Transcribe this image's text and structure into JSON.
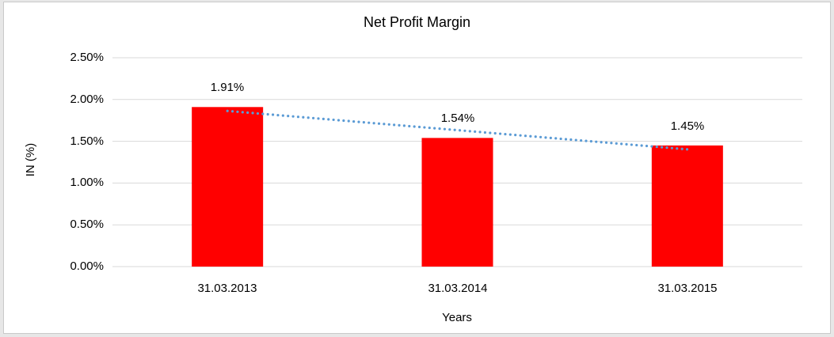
{
  "window": {
    "frame_background": "#e7e7e7",
    "chart_background": "#ffffff",
    "chart_border_color": "#c9c9c9",
    "text_color": "#000000"
  },
  "chart_data": {
    "type": "bar",
    "title": "Net Profit Margin",
    "xlabel": "Years",
    "ylabel": "IN (%)",
    "categories": [
      "31.03.2013",
      "31.03.2014",
      "31.03.2015"
    ],
    "values": [
      1.91,
      1.54,
      1.45
    ],
    "data_labels": [
      "1.91%",
      "1.54%",
      "1.45%"
    ],
    "ylim": [
      0,
      2.5
    ],
    "yticks": [
      {
        "value": 0.0,
        "label": "0.00%"
      },
      {
        "value": 0.5,
        "label": "0.50%"
      },
      {
        "value": 1.0,
        "label": "1.00%"
      },
      {
        "value": 1.5,
        "label": "1.50%"
      },
      {
        "value": 2.0,
        "label": "2.00%"
      },
      {
        "value": 2.5,
        "label": "2.50%"
      }
    ],
    "grid": true,
    "gridline_color": "#d9d9d9",
    "legend": "none",
    "bar_color": "#ff0000",
    "trendline": {
      "type": "linear",
      "style": "dotted",
      "color": "#5b9bd5"
    }
  }
}
